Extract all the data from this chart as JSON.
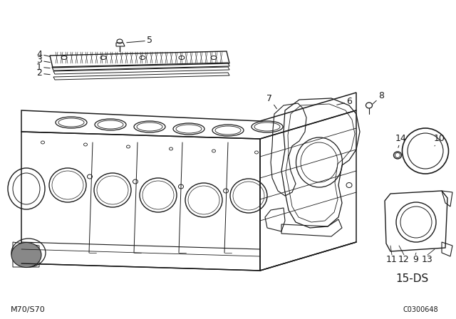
{
  "background_color": "#ffffff",
  "line_color": "#1a1a1a",
  "bottom_left_text": "M70/S70",
  "bottom_right_text": "C0300648",
  "diagram_code": "15-DS",
  "fig_width": 6.4,
  "fig_height": 4.48,
  "dpi": 100
}
